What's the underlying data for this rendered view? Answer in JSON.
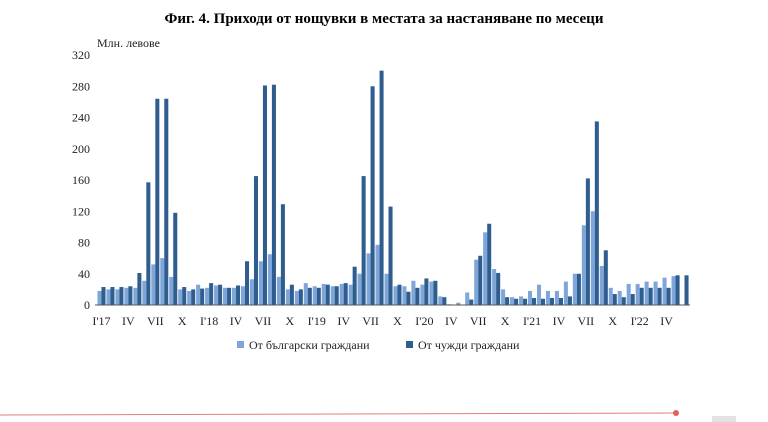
{
  "chart_data": {
    "type": "bar",
    "title": "Фиг. 4. Приходи от нощувки в местата за настаняване по месеци",
    "ylabel": "Млн. левове",
    "ylim": [
      0,
      320
    ],
    "yticks": [
      0,
      40,
      80,
      120,
      160,
      200,
      240,
      280,
      320
    ],
    "grid": false,
    "legend_position": "bottom",
    "x_tick_labels": [
      "I'17",
      "IV",
      "VII",
      "X",
      "I'18",
      "IV",
      "VII",
      "X",
      "I'19",
      "IV",
      "VII",
      "X",
      "I'20",
      "IV",
      "VII",
      "X",
      "I'21",
      "IV",
      "VII",
      "X",
      "I'22",
      "IV"
    ],
    "x_tick_months": [
      0,
      3,
      6,
      9,
      12,
      15,
      18,
      21,
      24,
      27,
      30,
      33,
      36,
      39,
      42,
      45,
      48,
      51,
      54,
      57,
      60,
      63
    ],
    "categories": [
      "2017-01",
      "2017-02",
      "2017-03",
      "2017-04",
      "2017-05",
      "2017-06",
      "2017-07",
      "2017-08",
      "2017-09",
      "2017-10",
      "2017-11",
      "2017-12",
      "2018-01",
      "2018-02",
      "2018-03",
      "2018-04",
      "2018-05",
      "2018-06",
      "2018-07",
      "2018-08",
      "2018-09",
      "2018-10",
      "2018-11",
      "2018-12",
      "2019-01",
      "2019-02",
      "2019-03",
      "2019-04",
      "2019-05",
      "2019-06",
      "2019-07",
      "2019-08",
      "2019-09",
      "2019-10",
      "2019-11",
      "2019-12",
      "2020-01",
      "2020-02",
      "2020-03",
      "2020-04",
      "2020-05",
      "2020-06",
      "2020-07",
      "2020-08",
      "2020-09",
      "2020-10",
      "2020-11",
      "2020-12",
      "2021-01",
      "2021-02",
      "2021-03",
      "2021-04",
      "2021-05",
      "2021-06",
      "2021-07",
      "2021-08",
      "2021-09",
      "2021-10",
      "2021-11",
      "2021-12",
      "2022-01",
      "2022-02",
      "2022-03",
      "2022-04",
      "2022-05",
      "2022-06"
    ],
    "series": [
      {
        "name": "От български граждани",
        "color": "#7ea6d9",
        "values": [
          18,
          20,
          20,
          22,
          22,
          31,
          52,
          60,
          36,
          20,
          18,
          26,
          22,
          25,
          22,
          22,
          24,
          33,
          56,
          65,
          36,
          20,
          18,
          28,
          24,
          27,
          24,
          27,
          26,
          40,
          66,
          77,
          40,
          24,
          24,
          31,
          26,
          30,
          11,
          1,
          3,
          16,
          58,
          93,
          46,
          20,
          10,
          11,
          18,
          26,
          18,
          18,
          30,
          40,
          102,
          120,
          50,
          22,
          18,
          27,
          27,
          30,
          30,
          35,
          37,
          0
        ]
      },
      {
        "name": "От чужди граждани",
        "color": "#2e5d8e",
        "values": [
          23,
          23,
          23,
          24,
          41,
          157,
          264,
          264,
          118,
          23,
          20,
          21,
          28,
          26,
          22,
          25,
          56,
          165,
          281,
          282,
          129,
          26,
          20,
          22,
          22,
          26,
          24,
          28,
          49,
          165,
          280,
          300,
          126,
          26,
          17,
          22,
          34,
          31,
          10,
          0,
          0,
          7,
          63,
          104,
          41,
          10,
          8,
          8,
          9,
          8,
          9,
          9,
          11,
          40,
          162,
          235,
          70,
          14,
          10,
          14,
          22,
          22,
          22,
          22,
          38,
          38
        ]
      }
    ]
  }
}
